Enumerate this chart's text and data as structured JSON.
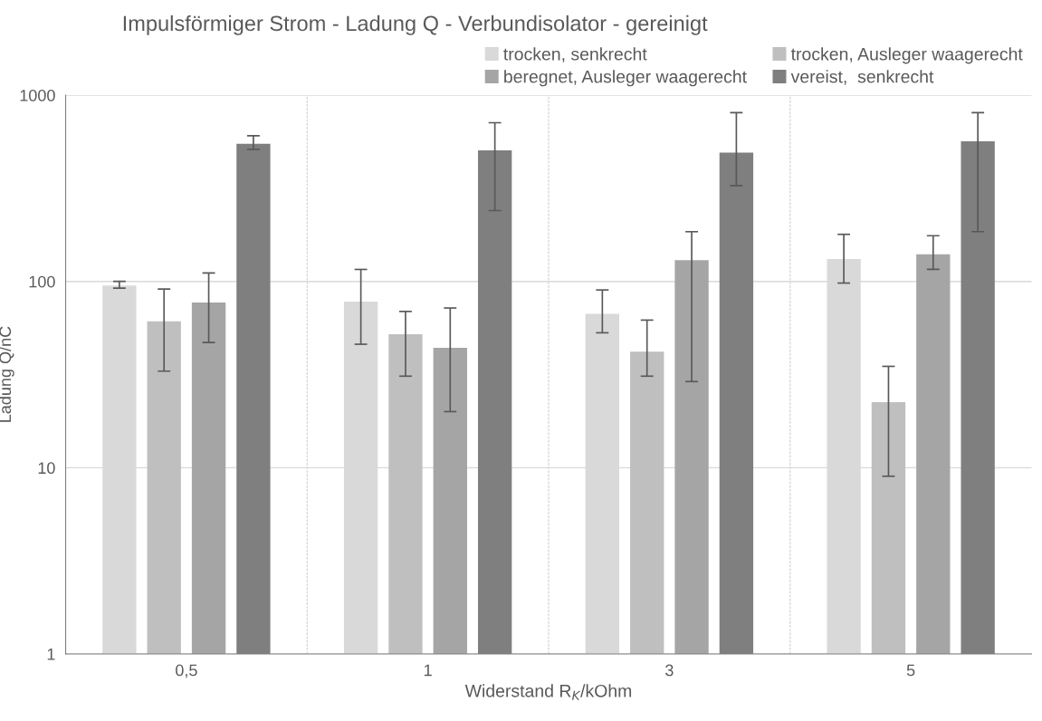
{
  "chart_data": {
    "type": "bar",
    "title": "Impulsförmiger Strom - Ladung Q - Verbundisolator - gereinigt",
    "xlabel": "Widerstand R$_{K}$/kOhm",
    "ylabel": "Ladung Q/nC",
    "categories": [
      "0,5",
      "1",
      "3",
      "5"
    ],
    "series": [
      {
        "name": "trocken, senkrecht",
        "color": "#d9d9d9",
        "values": [
          95,
          78,
          67,
          132
        ],
        "errors": [
          [
            92,
            100
          ],
          [
            46,
            116
          ],
          [
            53,
            90
          ],
          [
            98,
            179
          ]
        ]
      },
      {
        "name": "trocken, Ausleger waagerecht",
        "color": "#bfbfbf",
        "values": [
          61,
          52,
          42,
          22.5
        ],
        "errors": [
          [
            33,
            91
          ],
          [
            31,
            69
          ],
          [
            31,
            62
          ],
          [
            9,
            35
          ]
        ]
      },
      {
        "name": "beregnet, Ausleger waagerecht",
        "color": "#a5a5a5",
        "values": [
          77,
          44,
          130,
          140
        ],
        "errors": [
          [
            47,
            111
          ],
          [
            20,
            72
          ],
          [
            29,
            185
          ],
          [
            116,
            176
          ]
        ]
      },
      {
        "name": "vereist,  senkrecht",
        "color": "#7f7f7f",
        "values": [
          548,
          506,
          491,
          565
        ],
        "errors": [
          [
            512,
            606
          ],
          [
            240,
            711
          ],
          [
            327,
            806
          ],
          [
            185,
            806
          ]
        ]
      }
    ],
    "log": true,
    "ylim": [
      1,
      1000
    ],
    "yticks": [
      1,
      10,
      100,
      1000
    ],
    "grid": true,
    "legend": "top right"
  }
}
